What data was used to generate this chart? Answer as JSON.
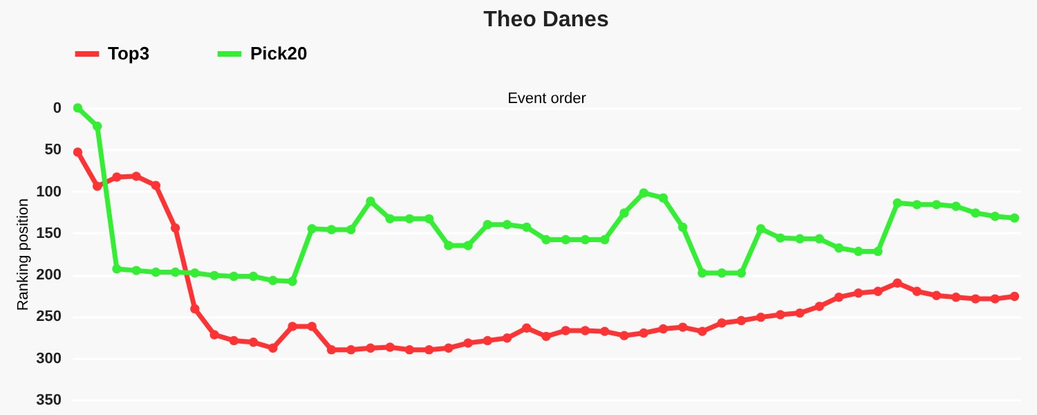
{
  "chart_data": {
    "type": "line",
    "title": "Theo Danes",
    "xlabel": "Event order",
    "ylabel": "Ranking position",
    "categories": [
      null,
      null,
      null,
      null,
      null,
      null,
      null,
      null,
      null,
      null,
      null,
      null,
      null,
      null,
      null,
      null,
      null,
      null,
      null,
      null,
      null,
      null,
      null,
      null,
      null,
      null,
      null,
      null,
      null,
      null,
      null,
      null,
      null,
      null,
      null,
      null,
      null,
      null,
      null,
      null,
      null,
      null,
      null,
      null,
      null,
      null,
      null,
      null,
      null
    ],
    "series": [
      {
        "name": "Top3",
        "color": "#ff3333",
        "values": [
          53,
          94,
          83,
          82,
          93,
          144,
          241,
          272,
          279,
          281,
          288,
          262,
          262,
          290,
          290,
          288,
          287,
          290,
          290,
          288,
          282,
          279,
          276,
          264,
          274,
          267,
          267,
          268,
          273,
          270,
          265,
          263,
          268,
          258,
          255,
          251,
          248,
          246,
          238,
          227,
          222,
          220,
          210,
          220,
          225,
          227,
          229,
          229,
          226
        ]
      },
      {
        "name": "Pick20",
        "color": "#33ee33",
        "values": [
          0,
          22,
          193,
          195,
          197,
          197,
          198,
          201,
          202,
          202,
          207,
          208,
          145,
          146,
          146,
          112,
          133,
          133,
          133,
          165,
          165,
          140,
          140,
          143,
          158,
          158,
          158,
          158,
          126,
          102,
          108,
          143,
          198,
          198,
          198,
          145,
          156,
          157,
          157,
          168,
          172,
          172,
          114,
          116,
          116,
          118,
          126,
          130,
          132
        ]
      }
    ],
    "ylim": [
      350,
      0
    ],
    "yticks": [
      0,
      50,
      100,
      150,
      200,
      250,
      300,
      350
    ],
    "grid": "y",
    "legend": "top",
    "marker": "circle",
    "line_style": "solid"
  }
}
